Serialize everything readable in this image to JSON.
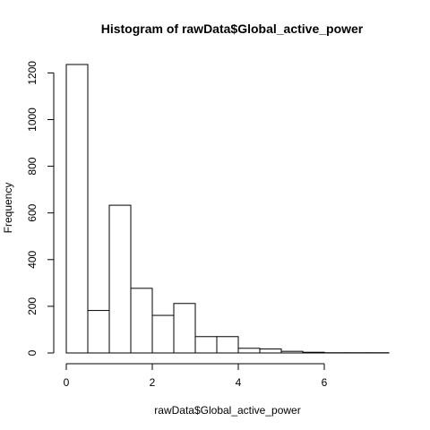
{
  "chart_data": {
    "type": "bar",
    "title": "Histogram of rawData$Global_active_power",
    "xlabel": "rawData$Global_active_power",
    "ylabel": "Frequency",
    "bin_width": 0.5,
    "bins": [
      {
        "start": 0.0,
        "end": 0.5,
        "value": 1236
      },
      {
        "start": 0.5,
        "end": 1.0,
        "value": 182
      },
      {
        "start": 1.0,
        "end": 1.5,
        "value": 633
      },
      {
        "start": 1.5,
        "end": 2.0,
        "value": 277
      },
      {
        "start": 2.0,
        "end": 2.5,
        "value": 161
      },
      {
        "start": 2.5,
        "end": 3.0,
        "value": 212
      },
      {
        "start": 3.0,
        "end": 3.5,
        "value": 70
      },
      {
        "start": 3.5,
        "end": 4.0,
        "value": 70
      },
      {
        "start": 4.0,
        "end": 4.5,
        "value": 20
      },
      {
        "start": 4.5,
        "end": 5.0,
        "value": 17
      },
      {
        "start": 5.0,
        "end": 5.5,
        "value": 7
      },
      {
        "start": 5.5,
        "end": 6.0,
        "value": 3
      },
      {
        "start": 6.0,
        "end": 6.5,
        "value": 1
      },
      {
        "start": 6.5,
        "end": 7.0,
        "value": 1
      },
      {
        "start": 7.0,
        "end": 7.5,
        "value": 1
      }
    ],
    "xlim": [
      0,
      7.5
    ],
    "ylim": [
      0,
      1236
    ],
    "x_ticks": [
      0,
      2,
      4,
      6
    ],
    "y_ticks": [
      0,
      200,
      400,
      600,
      800,
      1000,
      1200
    ],
    "grid": false,
    "bar_fill": "#ffffff",
    "bar_stroke": "#000000"
  }
}
